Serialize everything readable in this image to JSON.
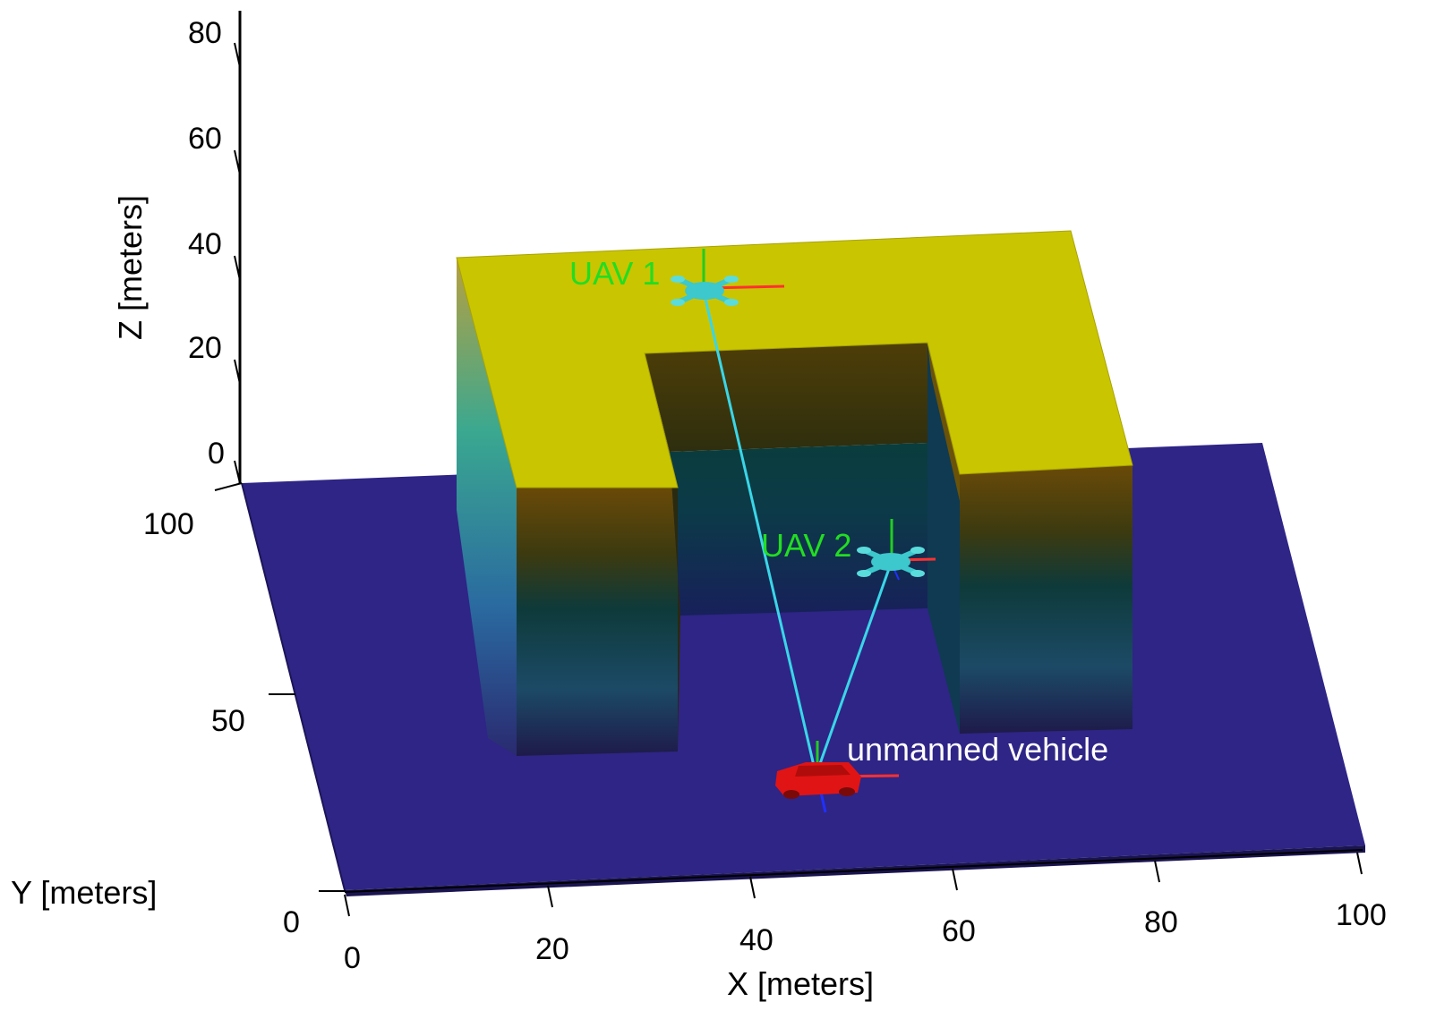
{
  "axes": {
    "x_label": "X [meters]",
    "y_label": "Y [meters]",
    "z_label": "Z [meters]",
    "x_ticks": [
      "0",
      "20",
      "40",
      "60",
      "80",
      "100"
    ],
    "y_ticks": [
      "0",
      "50",
      "100"
    ],
    "z_ticks": [
      "0",
      "20",
      "40",
      "60",
      "80"
    ]
  },
  "annotations": {
    "uav1": "UAV 1",
    "uav2": "UAV 2",
    "vehicle": "unmanned vehicle"
  },
  "colors": {
    "ground": "#2e2586",
    "building_top": "#c9c500",
    "inner_wall_top": "#4a3a08",
    "link_line": "#3ad6e8",
    "uav_body": "#3cc8cc",
    "vehicle_body": "#e01414",
    "label_green": "#22dd22",
    "label_white": "#ffffff"
  }
}
